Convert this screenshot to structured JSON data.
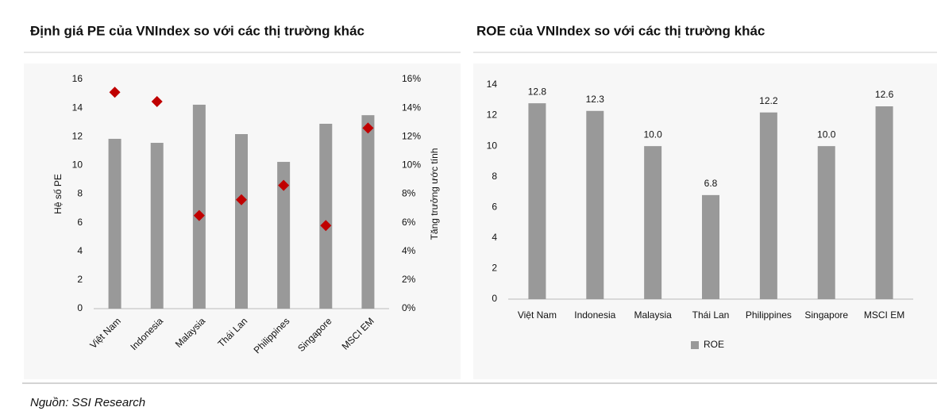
{
  "chart_data": [
    {
      "type": "bar",
      "title": "Định giá PE của VNIndex so với các thị trường khác",
      "categories": [
        "Việt Nam",
        "Indonesia",
        "Malaysia",
        "Thái Lan",
        "Philippines",
        "Singapore",
        "MSCI EM"
      ],
      "ylabel": "Hệ số PE",
      "y2label": "Tăng trưởng ước tính",
      "ylim": [
        0,
        16
      ],
      "yticks": [
        0,
        2,
        4,
        6,
        8,
        10,
        12,
        14,
        16
      ],
      "y2lim": [
        0,
        16
      ],
      "y2ticks": [
        {
          "value": 0,
          "label": "0%"
        },
        {
          "value": 2,
          "label": "2%"
        },
        {
          "value": 4,
          "label": "4%"
        },
        {
          "value": 6,
          "label": "6%"
        },
        {
          "value": 8,
          "label": "8%"
        },
        {
          "value": 10,
          "label": "10%"
        },
        {
          "value": 12,
          "label": "12%"
        },
        {
          "value": 14,
          "label": "14%"
        },
        {
          "value": 16,
          "label": "16%"
        }
      ],
      "series": [
        {
          "color": "#999999",
          "values": [
            11.85,
            11.57,
            14.23,
            12.18,
            10.24,
            12.9,
            13.5
          ]
        },
        {
          "type": "scatter",
          "axis": "y2",
          "color": "#c00000",
          "values": [
            15.1,
            14.45,
            6.5,
            7.6,
            8.6,
            5.8,
            12.6
          ]
        }
      ]
    },
    {
      "type": "bar",
      "title": "ROE của VNIndex so với các thị trường khác",
      "categories": [
        "Việt Nam",
        "Indonesia",
        "Malaysia",
        "Thái Lan",
        "Philippines",
        "Singapore",
        "MSCI EM"
      ],
      "ylim": [
        0,
        14
      ],
      "yticks": [
        0,
        2,
        4,
        6,
        8,
        10,
        12,
        14
      ],
      "legend": "bottom",
      "series": [
        {
          "name": "ROE",
          "color": "#999999",
          "values": [
            12.8,
            12.3,
            10.0,
            6.8,
            12.2,
            10.0,
            12.6
          ],
          "value_labels": [
            "12.8",
            "12.3",
            "10.0",
            "6.8",
            "12.2",
            "10.0",
            "12.6"
          ]
        }
      ]
    }
  ],
  "source": "Nguồn: SSI Research"
}
